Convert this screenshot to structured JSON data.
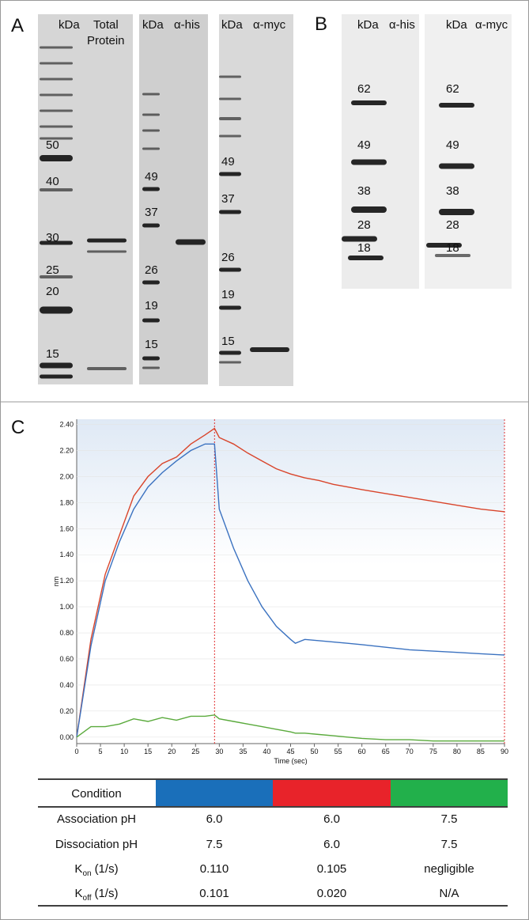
{
  "panel_a": {
    "label": "A",
    "gel1": {
      "headers": [
        "kDa",
        "Total",
        "Protein"
      ],
      "markers": [
        "50",
        "40",
        "30",
        "25",
        "20",
        "15"
      ]
    },
    "gel2": {
      "headers": [
        "kDa",
        "α-his"
      ],
      "markers": [
        "49",
        "37",
        "26",
        "19",
        "15"
      ]
    },
    "gel3": {
      "headers": [
        "kDa",
        "α-myc"
      ],
      "markers": [
        "49",
        "37",
        "26",
        "19",
        "15"
      ]
    }
  },
  "panel_b": {
    "label": "B",
    "gel1": {
      "headers": [
        "kDa",
        "α-his"
      ],
      "markers": [
        "62",
        "49",
        "38",
        "28",
        "18"
      ]
    },
    "gel2": {
      "headers": [
        "kDa",
        "α-myc"
      ],
      "markers": [
        "62",
        "49",
        "38",
        "28",
        "18"
      ]
    }
  },
  "panel_c_label": "C",
  "chart_data": {
    "type": "line",
    "x_label": "Time (sec)",
    "y_label": "nm",
    "xlim": [
      0,
      90
    ],
    "ylim": [
      -0.05,
      2.44
    ],
    "xticks": [
      0,
      5,
      10,
      15,
      20,
      25,
      30,
      35,
      40,
      45,
      50,
      55,
      60,
      65,
      70,
      75,
      80,
      85,
      90
    ],
    "yticks": [
      {
        "value": 0,
        "label": "0.00"
      },
      {
        "value": 0.2,
        "label": "0.20"
      },
      {
        "value": 0.4,
        "label": "0.40"
      },
      {
        "value": 0.6,
        "label": "0.60"
      },
      {
        "value": 0.8,
        "label": "0.80"
      },
      {
        "value": 1,
        "label": "1.00"
      },
      {
        "value": 1.2,
        "label": "1.20"
      },
      {
        "value": 1.4,
        "label": "1.40"
      },
      {
        "value": 1.6,
        "label": "1.60"
      },
      {
        "value": 1.8,
        "label": "1.80"
      },
      {
        "value": 2,
        "label": "2.00"
      },
      {
        "value": 2.2,
        "label": "2.20"
      },
      {
        "value": 2.4,
        "label": "2.40"
      }
    ],
    "vlines": [
      29,
      90
    ],
    "vline_color": "#e03030",
    "x": [
      0,
      3,
      6,
      9,
      12,
      15,
      18,
      21,
      24,
      27,
      29,
      30,
      33,
      36,
      39,
      42,
      45,
      46,
      48,
      51,
      54,
      57,
      60,
      65,
      70,
      75,
      80,
      85,
      90
    ],
    "series": [
      {
        "color": "#d9452b",
        "values": [
          0,
          0.75,
          1.25,
          1.55,
          1.85,
          2.0,
          2.1,
          2.15,
          2.25,
          2.32,
          2.37,
          2.3,
          2.25,
          2.18,
          2.12,
          2.06,
          2.02,
          2.01,
          1.99,
          1.97,
          1.94,
          1.92,
          1.9,
          1.87,
          1.84,
          1.81,
          1.78,
          1.75,
          1.73
        ]
      },
      {
        "color": "#3b72c0",
        "values": [
          0,
          0.7,
          1.2,
          1.5,
          1.75,
          1.92,
          2.03,
          2.12,
          2.2,
          2.25,
          2.25,
          1.75,
          1.45,
          1.2,
          1.0,
          0.85,
          0.75,
          0.72,
          0.75,
          0.74,
          0.73,
          0.72,
          0.71,
          0.69,
          0.67,
          0.66,
          0.65,
          0.64,
          0.63
        ]
      },
      {
        "color": "#5aaa3c",
        "values": [
          0,
          0.08,
          0.08,
          0.1,
          0.14,
          0.12,
          0.15,
          0.13,
          0.16,
          0.16,
          0.17,
          0.14,
          0.12,
          0.1,
          0.08,
          0.06,
          0.04,
          0.03,
          0.03,
          0.02,
          0.01,
          0.0,
          -0.01,
          -0.02,
          -0.02,
          -0.03,
          -0.03,
          -0.03,
          -0.03
        ]
      }
    ]
  },
  "table": {
    "header": "Condition",
    "colors": [
      "#1a6fba",
      "#e8232a",
      "#22b04b"
    ],
    "rows": [
      {
        "label": "Association pH",
        "cells": [
          "6.0",
          "6.0",
          "7.5"
        ]
      },
      {
        "label": "Dissociation pH",
        "cells": [
          "7.5",
          "6.0",
          "7.5"
        ]
      },
      {
        "label": {
          "main": "K",
          "sub": "on",
          "unit": "(1/s)"
        },
        "cells": [
          "0.110",
          "0.105",
          "negligible"
        ]
      },
      {
        "label": {
          "main": "K",
          "sub": "off",
          "unit": "(1/s)"
        },
        "cells": [
          "0.101",
          "0.020",
          "N/A"
        ]
      }
    ]
  }
}
